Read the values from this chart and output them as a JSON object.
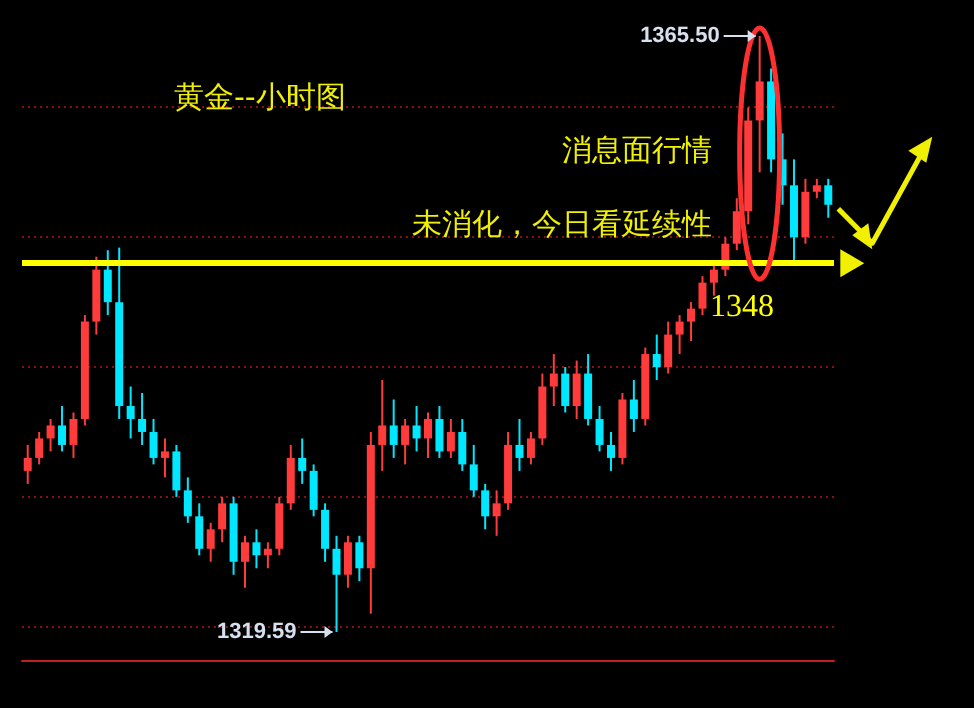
{
  "chart_data": {
    "type": "candlestick",
    "title": "黄金--小时图",
    "annotations": [
      "消息面行情",
      "未消化，今日看延续性",
      "1365.50",
      "1319.59"
    ],
    "categories": [
      null,
      null,
      null,
      null,
      null,
      null,
      null,
      null,
      null,
      null,
      null,
      null,
      null,
      null,
      null,
      null,
      null,
      null,
      null,
      null,
      null,
      null,
      null,
      null,
      null,
      null,
      null,
      null,
      null,
      null,
      null,
      null,
      null,
      null,
      null,
      null,
      null,
      null,
      null,
      null,
      null,
      null,
      null,
      null,
      null,
      null,
      null,
      null,
      null,
      null,
      null,
      null,
      null,
      null,
      null,
      null,
      null,
      null,
      null,
      null,
      null,
      null,
      null,
      null,
      null,
      null,
      null,
      null,
      null,
      null,
      null
    ],
    "ohlc": [
      [
        1332.0,
        1334.0,
        1331.0,
        1333.0
      ],
      [
        1333.0,
        1335.0,
        1332.5,
        1334.5
      ],
      [
        1334.5,
        1336.0,
        1333.5,
        1335.5
      ],
      [
        1335.5,
        1337.0,
        1333.5,
        1334.0
      ],
      [
        1334.0,
        1336.5,
        1333.0,
        1336.0
      ],
      [
        1336.0,
        1344.0,
        1335.5,
        1343.5
      ],
      [
        1343.5,
        1348.5,
        1342.5,
        1347.5
      ],
      [
        1347.5,
        1349.0,
        1344.0,
        1345.0
      ],
      [
        1345.0,
        1349.2,
        1336.0,
        1337.0
      ],
      [
        1337.0,
        1338.5,
        1334.5,
        1336.0
      ],
      [
        1336.0,
        1338.0,
        1334.0,
        1335.0
      ],
      [
        1335.0,
        1336.0,
        1332.5,
        1333.0
      ],
      [
        1333.0,
        1334.5,
        1331.5,
        1333.5
      ],
      [
        1333.5,
        1334.0,
        1330.0,
        1330.5
      ],
      [
        1330.5,
        1331.5,
        1328.0,
        1328.5
      ],
      [
        1328.5,
        1329.5,
        1325.5,
        1326.0
      ],
      [
        1326.0,
        1328.0,
        1325.0,
        1327.5
      ],
      [
        1327.5,
        1330.0,
        1326.5,
        1329.5
      ],
      [
        1329.5,
        1330.0,
        1324.0,
        1325.0
      ],
      [
        1325.0,
        1327.0,
        1323.0,
        1326.5
      ],
      [
        1326.5,
        1327.5,
        1324.5,
        1325.5
      ],
      [
        1325.5,
        1326.5,
        1324.5,
        1326.0
      ],
      [
        1326.0,
        1330.0,
        1325.5,
        1329.5
      ],
      [
        1329.5,
        1334.0,
        1329.0,
        1333.0
      ],
      [
        1333.0,
        1334.5,
        1331.0,
        1332.0
      ],
      [
        1332.0,
        1332.5,
        1328.5,
        1329.0
      ],
      [
        1329.0,
        1329.5,
        1325.0,
        1326.0
      ],
      [
        1326.0,
        1327.0,
        1319.59,
        1324.0
      ],
      [
        1324.0,
        1327.0,
        1323.0,
        1326.5
      ],
      [
        1326.5,
        1327.0,
        1323.5,
        1324.5
      ],
      [
        1324.5,
        1335.0,
        1321.0,
        1334.0
      ],
      [
        1334.0,
        1339.0,
        1332.0,
        1335.5
      ],
      [
        1335.5,
        1337.5,
        1333.0,
        1334.0
      ],
      [
        1334.0,
        1336.0,
        1332.5,
        1335.5
      ],
      [
        1335.5,
        1337.0,
        1333.5,
        1334.5
      ],
      [
        1334.5,
        1336.5,
        1333.0,
        1336.0
      ],
      [
        1336.0,
        1337.0,
        1333.0,
        1333.5
      ],
      [
        1333.5,
        1336.0,
        1333.0,
        1335.0
      ],
      [
        1335.0,
        1336.0,
        1332.0,
        1332.5
      ],
      [
        1332.5,
        1334.0,
        1330.0,
        1330.5
      ],
      [
        1330.5,
        1331.0,
        1327.5,
        1328.5
      ],
      [
        1328.5,
        1330.5,
        1327.0,
        1329.5
      ],
      [
        1329.5,
        1335.0,
        1329.0,
        1334.0
      ],
      [
        1334.0,
        1336.0,
        1332.0,
        1333.0
      ],
      [
        1333.0,
        1335.0,
        1332.5,
        1334.5
      ],
      [
        1334.5,
        1339.5,
        1334.0,
        1338.5
      ],
      [
        1338.5,
        1341.0,
        1337.0,
        1339.5
      ],
      [
        1339.5,
        1340.0,
        1336.5,
        1337.0
      ],
      [
        1337.0,
        1340.5,
        1336.0,
        1339.5
      ],
      [
        1339.5,
        1341.0,
        1335.5,
        1336.0
      ],
      [
        1336.0,
        1337.0,
        1333.5,
        1334.0
      ],
      [
        1334.0,
        1335.0,
        1332.0,
        1333.0
      ],
      [
        1333.0,
        1338.0,
        1332.5,
        1337.5
      ],
      [
        1337.5,
        1339.0,
        1335.0,
        1336.0
      ],
      [
        1336.0,
        1341.5,
        1335.5,
        1341.0
      ],
      [
        1341.0,
        1342.5,
        1339.0,
        1340.0
      ],
      [
        1340.0,
        1343.5,
        1339.5,
        1342.5
      ],
      [
        1342.5,
        1344.0,
        1341.0,
        1343.5
      ],
      [
        1343.5,
        1345.0,
        1342.0,
        1344.5
      ],
      [
        1344.5,
        1347.0,
        1344.0,
        1346.5
      ],
      [
        1346.5,
        1348.0,
        1345.5,
        1347.5
      ],
      [
        1347.5,
        1350.0,
        1347.0,
        1349.5
      ],
      [
        1349.5,
        1353.0,
        1349.0,
        1352.0
      ],
      [
        1352.0,
        1360.0,
        1351.0,
        1359.0
      ],
      [
        1359.0,
        1365.5,
        1355.0,
        1362.0
      ],
      [
        1362.0,
        1363.0,
        1355.0,
        1356.0
      ],
      [
        1356.0,
        1358.0,
        1352.5,
        1354.0
      ],
      [
        1354.0,
        1356.0,
        1348.0,
        1350.0
      ],
      [
        1350.0,
        1354.5,
        1349.5,
        1353.5
      ],
      [
        1353.5,
        1354.5,
        1353.0,
        1354.0
      ],
      [
        1354.0,
        1354.5,
        1351.5,
        1352.5
      ]
    ],
    "colors": [
      "#ff3b3b",
      "#ff3b3b",
      "#ff3b3b",
      "#00e8ff",
      "#ff3b3b",
      "#ff3b3b",
      "#ff3b3b",
      "#00e8ff",
      "#00e8ff",
      "#00e8ff",
      "#00e8ff",
      "#00e8ff",
      "#ff3b3b",
      "#00e8ff",
      "#00e8ff",
      "#00e8ff",
      "#ff3b3b",
      "#ff3b3b",
      "#00e8ff",
      "#ff3b3b",
      "#00e8ff",
      "#ff3b3b",
      "#ff3b3b",
      "#ff3b3b",
      "#00e8ff",
      "#00e8ff",
      "#00e8ff",
      "#00e8ff",
      "#ff3b3b",
      "#00e8ff",
      "#ff3b3b",
      "#ff3b3b",
      "#00e8ff",
      "#ff3b3b",
      "#00e8ff",
      "#ff3b3b",
      "#00e8ff",
      "#ff3b3b",
      "#00e8ff",
      "#00e8ff",
      "#00e8ff",
      "#ff3b3b",
      "#ff3b3b",
      "#00e8ff",
      "#ff3b3b",
      "#ff3b3b",
      "#ff3b3b",
      "#00e8ff",
      "#ff3b3b",
      "#00e8ff",
      "#00e8ff",
      "#00e8ff",
      "#ff3b3b",
      "#00e8ff",
      "#ff3b3b",
      "#00e8ff",
      "#ff3b3b",
      "#ff3b3b",
      "#ff3b3b",
      "#ff3b3b",
      "#ff3b3b",
      "#ff3b3b",
      "#ff3b3b",
      "#ff3b3b",
      "#ff3b3b",
      "#00e8ff",
      "#00e8ff",
      "#00e8ff",
      "#ff3b3b",
      "#ff3b3b",
      "#00e8ff"
    ],
    "yticks": [
      {
        "value": 1320,
        "label": null
      },
      {
        "value": 1330,
        "label": null
      },
      {
        "value": 1340,
        "label": null
      },
      {
        "value": 1350,
        "label": null
      },
      {
        "value": 1360,
        "label": null
      }
    ],
    "grid": "y",
    "ref_lines": [
      {
        "axis": "y",
        "value": 1348,
        "label": "1348",
        "color": "#ffff00"
      }
    ]
  }
}
